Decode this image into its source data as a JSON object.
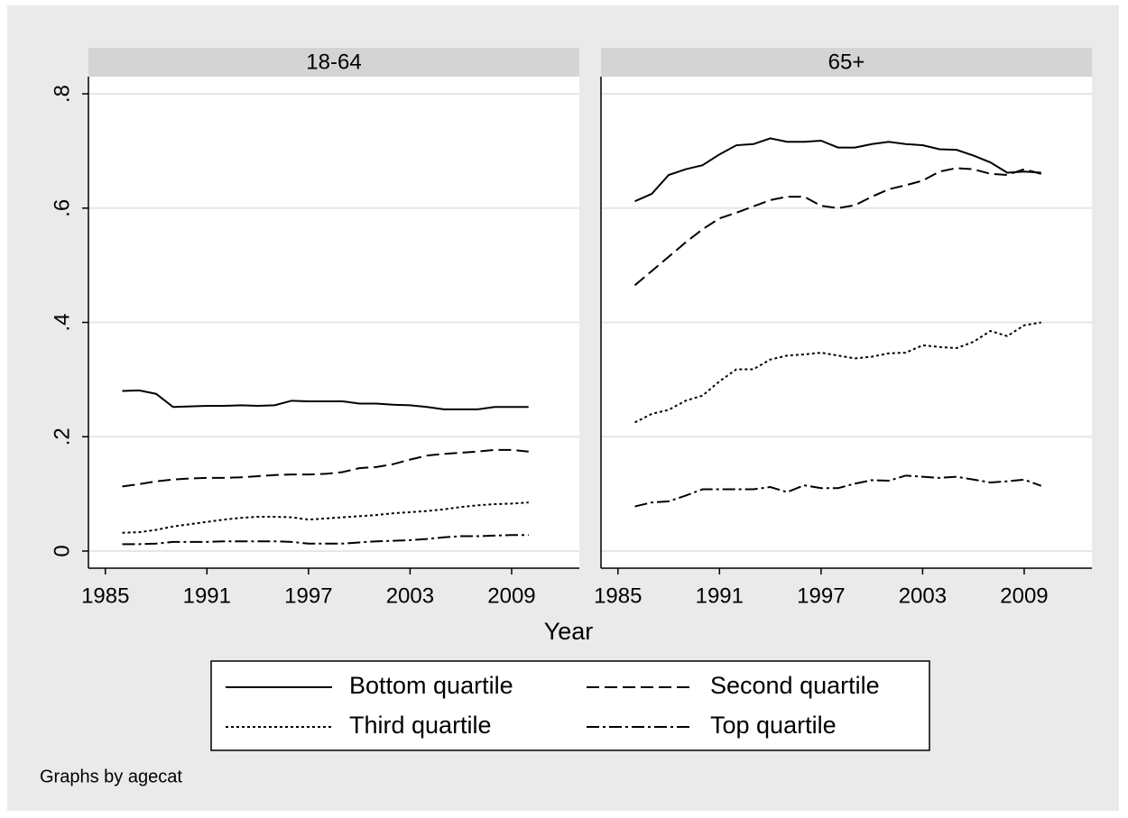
{
  "chart_data": [
    {
      "type": "line",
      "title": "18-64",
      "x": [
        1986,
        1987,
        1988,
        1989,
        1990,
        1991,
        1992,
        1993,
        1994,
        1995,
        1996,
        1997,
        1998,
        1999,
        2000,
        2001,
        2002,
        2003,
        2004,
        2005,
        2006,
        2007,
        2008,
        2009,
        2010
      ],
      "xlim": [
        1984,
        2013
      ],
      "xticks": [
        1985,
        1991,
        1997,
        2003,
        2009
      ],
      "ylim": [
        -0.03,
        0.83
      ],
      "yticks": [
        0,
        {
          "value": 0.2,
          "label": ".2"
        },
        {
          "value": 0.4,
          "label": ".4"
        },
        {
          "value": 0.6,
          "label": ".6"
        },
        {
          "value": 0.8,
          "label": ".8"
        }
      ],
      "grid": true,
      "series": [
        {
          "name": "Bottom quartile",
          "color": "#000000",
          "dash": "none",
          "values": [
            0.28,
            0.281,
            0.275,
            0.252,
            0.253,
            0.254,
            0.254,
            0.255,
            0.254,
            0.255,
            0.263,
            0.262,
            0.262,
            0.262,
            0.258,
            0.258,
            0.256,
            0.255,
            0.252,
            0.248,
            0.248,
            0.248,
            0.252,
            0.252,
            0.252
          ]
        },
        {
          "name": "Second quartile",
          "color": "#000000",
          "dash": "14 6",
          "values": [
            0.113,
            0.117,
            0.122,
            0.125,
            0.127,
            0.128,
            0.128,
            0.129,
            0.131,
            0.133,
            0.134,
            0.134,
            0.135,
            0.138,
            0.145,
            0.147,
            0.152,
            0.16,
            0.167,
            0.17,
            0.172,
            0.174,
            0.177,
            0.177,
            0.174
          ]
        },
        {
          "name": "Third quartile",
          "color": "#000000",
          "dash": "3 3",
          "values": [
            0.032,
            0.033,
            0.037,
            0.043,
            0.047,
            0.051,
            0.055,
            0.058,
            0.06,
            0.06,
            0.059,
            0.055,
            0.057,
            0.059,
            0.061,
            0.063,
            0.066,
            0.068,
            0.07,
            0.073,
            0.077,
            0.08,
            0.082,
            0.083,
            0.085
          ]
        },
        {
          "name": "Top quartile",
          "color": "#000000",
          "dash": "14 4 3 4",
          "values": [
            0.012,
            0.012,
            0.013,
            0.016,
            0.016,
            0.016,
            0.017,
            0.017,
            0.017,
            0.017,
            0.016,
            0.013,
            0.013,
            0.013,
            0.015,
            0.017,
            0.018,
            0.019,
            0.021,
            0.024,
            0.026,
            0.026,
            0.027,
            0.028,
            0.028
          ]
        }
      ]
    },
    {
      "type": "line",
      "title": "65+",
      "x": [
        1986,
        1987,
        1988,
        1989,
        1990,
        1991,
        1992,
        1993,
        1994,
        1995,
        1996,
        1997,
        1998,
        1999,
        2000,
        2001,
        2002,
        2003,
        2004,
        2005,
        2006,
        2007,
        2008,
        2009,
        2010
      ],
      "xlim": [
        1984,
        2013
      ],
      "xticks": [
        1985,
        1991,
        1997,
        2003,
        2009
      ],
      "ylim": [
        -0.03,
        0.83
      ],
      "yticks": [
        0,
        0.2,
        0.4,
        0.6,
        0.8
      ],
      "grid": true,
      "series": [
        {
          "color": "#000000",
          "dash": "none",
          "values": [
            0.612,
            0.625,
            0.658,
            0.668,
            0.675,
            0.694,
            0.71,
            0.712,
            0.722,
            0.716,
            0.716,
            0.718,
            0.706,
            0.706,
            0.712,
            0.716,
            0.712,
            0.71,
            0.703,
            0.702,
            0.692,
            0.68,
            0.662,
            0.664,
            0.662
          ]
        },
        {
          "color": "#000000",
          "dash": "14 6",
          "values": [
            0.465,
            0.49,
            0.515,
            0.54,
            0.563,
            0.582,
            0.592,
            0.603,
            0.614,
            0.62,
            0.62,
            0.604,
            0.6,
            0.605,
            0.62,
            0.633,
            0.64,
            0.648,
            0.664,
            0.67,
            0.668,
            0.66,
            0.658,
            0.668,
            0.66
          ]
        },
        {
          "color": "#000000",
          "dash": "3 3",
          "values": [
            0.225,
            0.24,
            0.247,
            0.263,
            0.272,
            0.297,
            0.318,
            0.318,
            0.335,
            0.342,
            0.344,
            0.347,
            0.342,
            0.337,
            0.34,
            0.346,
            0.347,
            0.36,
            0.357,
            0.355,
            0.366,
            0.385,
            0.376,
            0.395,
            0.4
          ]
        },
        {
          "color": "#000000",
          "dash": "14 4 3 4",
          "values": [
            0.078,
            0.085,
            0.087,
            0.097,
            0.108,
            0.108,
            0.108,
            0.108,
            0.112,
            0.103,
            0.115,
            0.11,
            0.11,
            0.118,
            0.124,
            0.123,
            0.132,
            0.13,
            0.128,
            0.13,
            0.125,
            0.12,
            0.122,
            0.125,
            0.114
          ]
        }
      ]
    }
  ],
  "x_label": "Year",
  "note": "Graphs by agecat"
}
